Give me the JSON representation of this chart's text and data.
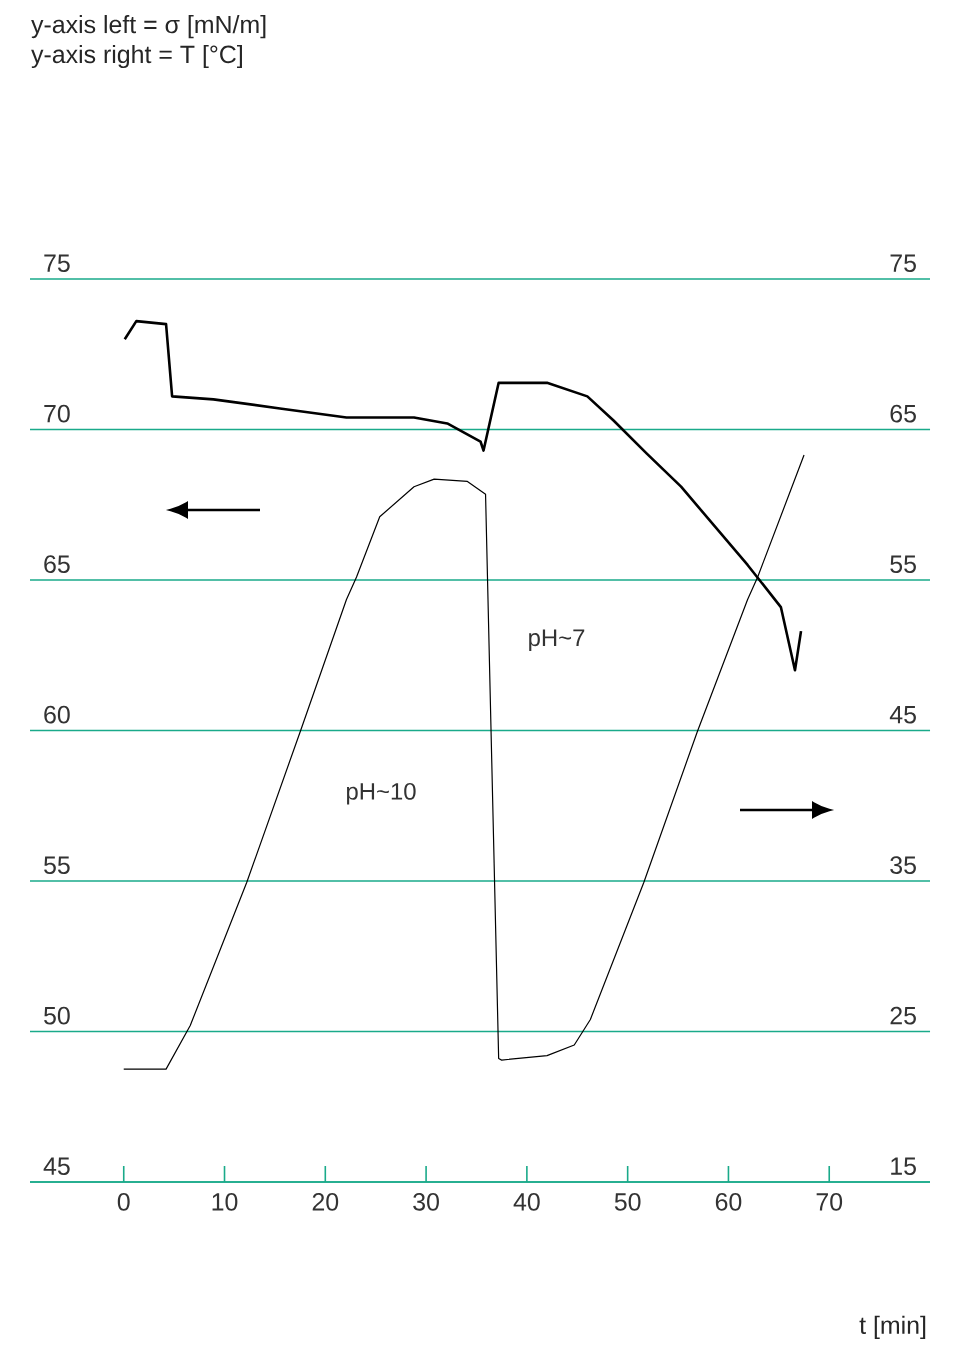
{
  "chart_data": {
    "type": "line",
    "xlabel": "t [min]",
    "annotations": [
      "y-axis left = σ [mN/m]",
      "y-axis right = T [°C]",
      "pH~10",
      "pH~7"
    ],
    "grid": "y",
    "xlim": [
      -9.3,
      80
    ],
    "xticks": [
      0,
      10,
      20,
      30,
      40,
      50,
      60,
      70
    ],
    "ylim": [
      45,
      75
    ],
    "yticks": [
      45,
      50,
      55,
      60,
      65,
      70,
      75
    ],
    "y2lim": [
      15,
      75
    ],
    "y2ticks": [
      15,
      25,
      35,
      45,
      55,
      65,
      75
    ],
    "series": [
      {
        "color": "#000000",
        "x": [
          0.1,
          1.25,
          4.2,
          4.8,
          8.9,
          15.5,
          22.1,
          28.8,
          32.1,
          35.4,
          35.7,
          37.2,
          42.0,
          46.0,
          48.6,
          51.9,
          55.3,
          58.6,
          61.9,
          65.2,
          66.6,
          67.2
        ],
        "values": [
          73.0,
          73.6,
          73.5,
          71.1,
          71.0,
          70.7,
          70.4,
          70.4,
          70.2,
          69.6,
          69.3,
          71.55,
          71.55,
          71.1,
          70.3,
          69.2,
          68.1,
          66.8,
          65.5,
          64.1,
          62.0,
          63.3
        ]
      },
      {
        "color": "#000000",
        "axis": "y2",
        "x": [
          0,
          4.2,
          6.6,
          12.2,
          17.5,
          22.1,
          23.1,
          25.4,
          28.8,
          30.8,
          34.1,
          35.9,
          37.2,
          37.5,
          42.0,
          44.7,
          46.3,
          51.6,
          56.9,
          61.9,
          62.9,
          67.5
        ],
        "values": [
          22.5,
          22.5,
          25.4,
          34.9,
          44.9,
          53.7,
          55.2,
          59.2,
          61.2,
          61.7,
          61.55,
          60.7,
          23.2,
          23.1,
          23.4,
          24.1,
          25.8,
          34.9,
          44.9,
          53.7,
          55.2,
          63.3
        ]
      }
    ]
  }
}
